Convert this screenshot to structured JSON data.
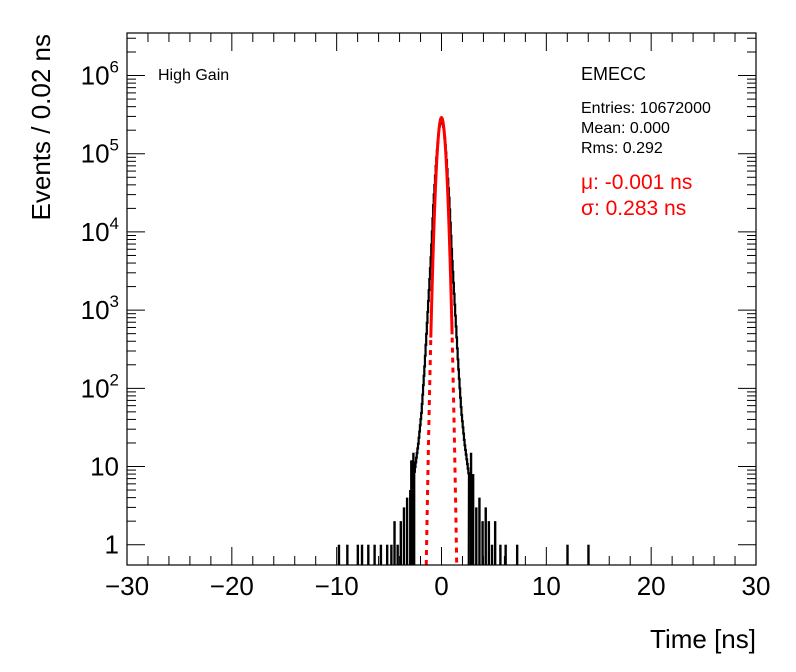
{
  "chart_data": {
    "type": "histogram",
    "title": "",
    "xlabel": "Time [ns]",
    "ylabel": "Events / 0.02 ns",
    "xlim": [
      -30,
      30
    ],
    "ylim": [
      0.55,
      3500000
    ],
    "yscale": "log",
    "grid": false,
    "bin_width_ns": 0.02,
    "x_ticks": [
      {
        "v": -30,
        "label": "−30"
      },
      {
        "v": -20,
        "label": "−20"
      },
      {
        "v": -10,
        "label": "−10"
      },
      {
        "v": 0,
        "label": "0"
      },
      {
        "v": 10,
        "label": "10"
      },
      {
        "v": 20,
        "label": "20"
      },
      {
        "v": 30,
        "label": "30"
      }
    ],
    "y_ticks": [
      {
        "v": 1,
        "label": "1",
        "exp": ""
      },
      {
        "v": 10,
        "label": "10",
        "exp": ""
      },
      {
        "v": 100,
        "label": "10",
        "exp": "2"
      },
      {
        "v": 1000,
        "label": "10",
        "exp": "3"
      },
      {
        "v": 10000,
        "label": "10",
        "exp": "4"
      },
      {
        "v": 100000,
        "label": "10",
        "exp": "5"
      },
      {
        "v": 1000000,
        "label": "10",
        "exp": "6"
      }
    ],
    "annotations": {
      "region": "High Gain",
      "detector": "EMECC",
      "entries": "Entries: 10672000",
      "mean": "Mean: 0.000",
      "rms": "Rms: 0.292",
      "fit_mu": "μ: -0.001 ns",
      "fit_sigma": "σ: 0.283 ns"
    },
    "series": [
      {
        "name": "",
        "kind": "histogram",
        "color": "#000000",
        "core_points": [
          [
            -2.6,
            8
          ],
          [
            -2.2,
            20
          ],
          [
            -1.9,
            50
          ],
          [
            -1.6,
            200
          ],
          [
            -1.3,
            1000
          ],
          [
            -1.0,
            5000
          ],
          [
            -0.75,
            25000
          ],
          [
            -0.5,
            80000
          ],
          [
            -0.25,
            200000
          ],
          [
            0.0,
            290000
          ],
          [
            0.25,
            200000
          ],
          [
            0.5,
            80000
          ],
          [
            0.75,
            25000
          ],
          [
            1.0,
            5000
          ],
          [
            1.3,
            1000
          ],
          [
            1.6,
            200
          ],
          [
            1.9,
            50
          ],
          [
            2.2,
            20
          ],
          [
            2.6,
            8
          ]
        ],
        "tail_bins": [
          [
            -9.8,
            1
          ],
          [
            -9.0,
            1
          ],
          [
            -8.0,
            1
          ],
          [
            -7.6,
            1
          ],
          [
            -7.0,
            1
          ],
          [
            -6.4,
            1
          ],
          [
            -5.8,
            1
          ],
          [
            -5.2,
            1
          ],
          [
            -4.8,
            1
          ],
          [
            -4.5,
            2
          ],
          [
            -4.2,
            1
          ],
          [
            -3.9,
            2
          ],
          [
            -3.6,
            3
          ],
          [
            -3.3,
            4
          ],
          [
            -3.0,
            5
          ],
          [
            -2.9,
            12
          ],
          [
            -2.7,
            15
          ],
          [
            2.8,
            15
          ],
          [
            3.0,
            8
          ],
          [
            3.3,
            3
          ],
          [
            3.6,
            4
          ],
          [
            3.9,
            2
          ],
          [
            4.2,
            3
          ],
          [
            4.5,
            2
          ],
          [
            4.8,
            1
          ],
          [
            5.1,
            2
          ],
          [
            5.6,
            1
          ],
          [
            6.1,
            1
          ],
          [
            7.2,
            1
          ],
          [
            12.0,
            1
          ],
          [
            14.0,
            1
          ]
        ]
      },
      {
        "name": "",
        "kind": "gaussian_fit",
        "color": "#ff0000",
        "amplitude": 290000,
        "mu": -0.001,
        "sigma": 0.283
      }
    ]
  }
}
